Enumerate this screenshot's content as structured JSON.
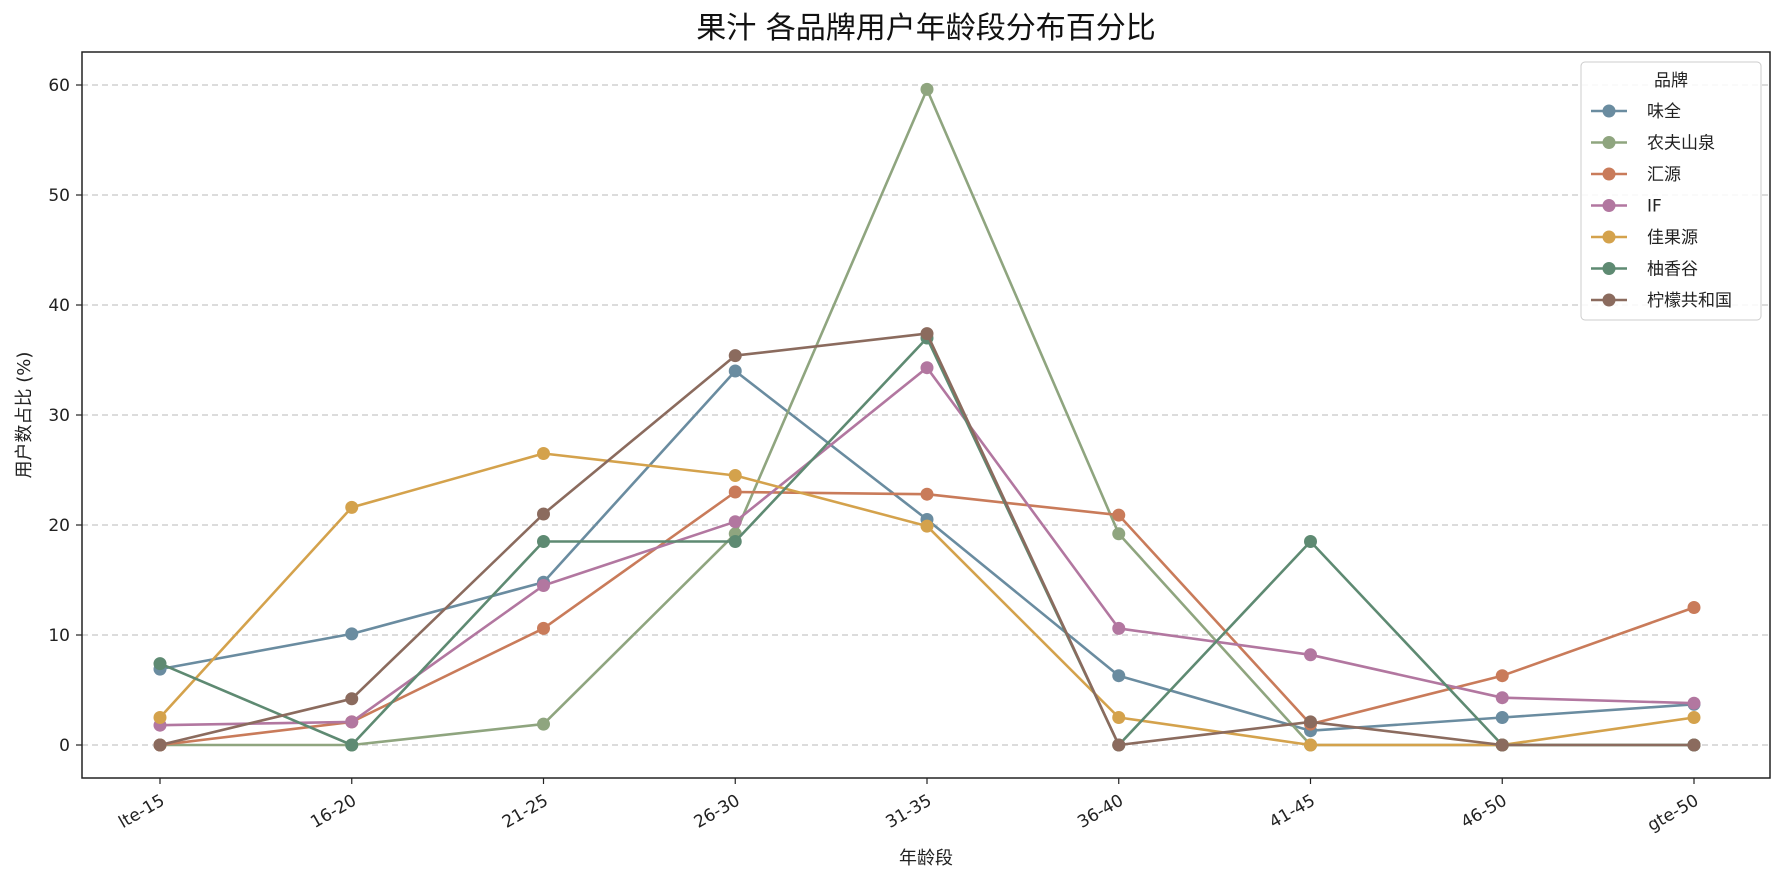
{
  "chart_data": {
    "type": "line",
    "title": "果汁 各品牌用户年龄段分布百分比",
    "xlabel": "年龄段",
    "ylabel": "用户数占比 (%)",
    "categories": [
      "lte-15",
      "16-20",
      "21-25",
      "26-30",
      "31-35",
      "36-40",
      "41-45",
      "46-50",
      "gte-50"
    ],
    "ylim": [
      -3,
      63
    ],
    "yticks": [
      0,
      10,
      20,
      30,
      40,
      50,
      60
    ],
    "grid": "horizontal-dashed",
    "legend": {
      "title": "品牌",
      "placement": "top-right"
    },
    "series": [
      {
        "name": "味全",
        "color": "#6a8ca0",
        "values": [
          6.9,
          10.1,
          14.8,
          34.0,
          20.5,
          6.3,
          1.3,
          2.5,
          3.7
        ]
      },
      {
        "name": "农夫山泉",
        "color": "#8fa57f",
        "values": [
          0.0,
          0.0,
          1.9,
          19.2,
          59.6,
          19.2,
          0.0,
          0.0,
          0.0
        ]
      },
      {
        "name": "汇源",
        "color": "#c97b5a",
        "values": [
          0.0,
          2.1,
          10.6,
          23.0,
          22.8,
          20.9,
          1.9,
          6.3,
          12.5
        ]
      },
      {
        "name": "IF",
        "color": "#b277a0",
        "values": [
          1.8,
          2.1,
          14.5,
          20.3,
          34.3,
          10.6,
          8.2,
          4.3,
          3.8
        ]
      },
      {
        "name": "佳果源",
        "color": "#d4a24c",
        "values": [
          2.5,
          21.6,
          26.5,
          24.5,
          19.9,
          2.5,
          0.0,
          0.0,
          2.5
        ]
      },
      {
        "name": "柚香谷",
        "color": "#5e8a72",
        "values": [
          7.4,
          0.0,
          18.5,
          18.5,
          37.0,
          0.0,
          18.5,
          0.0,
          0.0
        ]
      },
      {
        "name": "柠檬共和国",
        "color": "#8b6b5e",
        "values": [
          0.0,
          4.2,
          21.0,
          35.4,
          37.4,
          0.0,
          2.1,
          0.0,
          0.0
        ]
      }
    ]
  }
}
